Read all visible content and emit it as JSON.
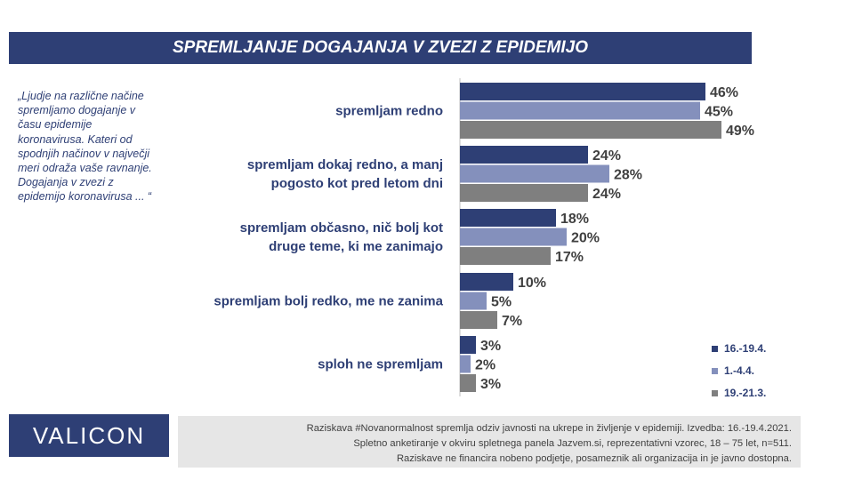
{
  "title": "SPREMLJANJE DOGAJANJA V ZVEZI Z EPIDEMIJO",
  "question": "„Ljudje na različne načine\nspremljamo dogajanje v\nčasu epidemije\nkoronavirusa.  Kateri od\nspodnjih načinov v največji\nmeri odraža vaše ravnanje.\nDogajanja v zvezi z\nepidemijo koronavirusa ... “",
  "logo": "VALICON",
  "footnote": [
    "Raziskava #Novanormalnost spremlja odziv javnosti na ukrepe in življenje v epidemiji. Izvedba: 16.-19.4.2021.",
    "Spletno anketiranje v okviru spletnega panela Jazvem.si, reprezentativni vzorec, 18 – 75 let, n=511.",
    "Raziskave ne financira nobeno podjetje, posameznik ali organizacija in je javno dostopna."
  ],
  "chart_data": {
    "type": "bar",
    "orientation": "horizontal",
    "unit": "%",
    "xlim": [
      0,
      100
    ],
    "legend_position": "bottom-right",
    "categories": [
      "spremljam redno",
      "spremljam dokaj redno, a manj pogosto kot pred letom dni",
      "spremljam občasno, nič bolj kot druge teme, ki me zanimajo",
      "spremljam bolj redko, me ne zanima",
      "sploh ne spremljam"
    ],
    "category_lines": [
      [
        "spremljam redno"
      ],
      [
        "spremljam dokaj redno, a manj",
        "pogosto kot pred letom dni"
      ],
      [
        "spremljam občasno, nič bolj kot",
        "druge teme, ki me zanimajo"
      ],
      [
        "spremljam bolj redko, me ne zanima"
      ],
      [
        "sploh ne spremljam"
      ]
    ],
    "series": [
      {
        "name": "16.-19.4.",
        "color": "#2e3f75",
        "values": [
          46,
          24,
          18,
          10,
          3
        ]
      },
      {
        "name": "1.-4.4.",
        "color": "#8490bc",
        "values": [
          45,
          28,
          20,
          5,
          2
        ]
      },
      {
        "name": "19.-21.3.",
        "color": "#7f7f7f",
        "values": [
          49,
          24,
          17,
          7,
          3
        ]
      }
    ]
  }
}
